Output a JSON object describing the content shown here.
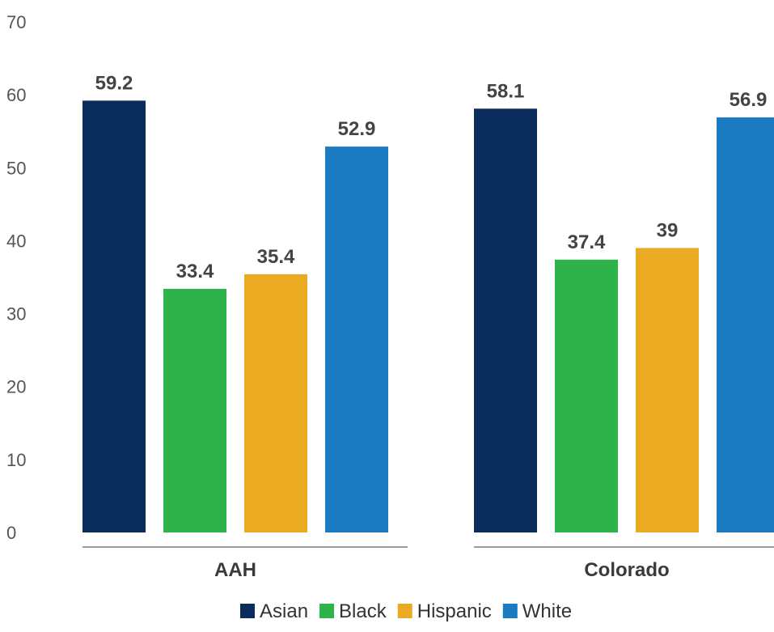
{
  "chart_data": {
    "type": "bar",
    "categories": [
      "AAH",
      "Colorado"
    ],
    "series": [
      {
        "name": "Asian",
        "color": "#0b2d5b",
        "values": [
          59.2,
          58.1
        ]
      },
      {
        "name": "Black",
        "color": "#2db34a",
        "values": [
          33.4,
          37.4
        ]
      },
      {
        "name": "Hispanic",
        "color": "#eaaa22",
        "values": [
          35.4,
          39
        ]
      },
      {
        "name": "White",
        "color": "#1a7ac2",
        "values": [
          52.9,
          56.9
        ]
      }
    ],
    "yticks": [
      0,
      10,
      20,
      30,
      40,
      50,
      60,
      70
    ],
    "ylim": [
      0,
      70
    ],
    "grid": false,
    "legend": "bottom-center"
  }
}
